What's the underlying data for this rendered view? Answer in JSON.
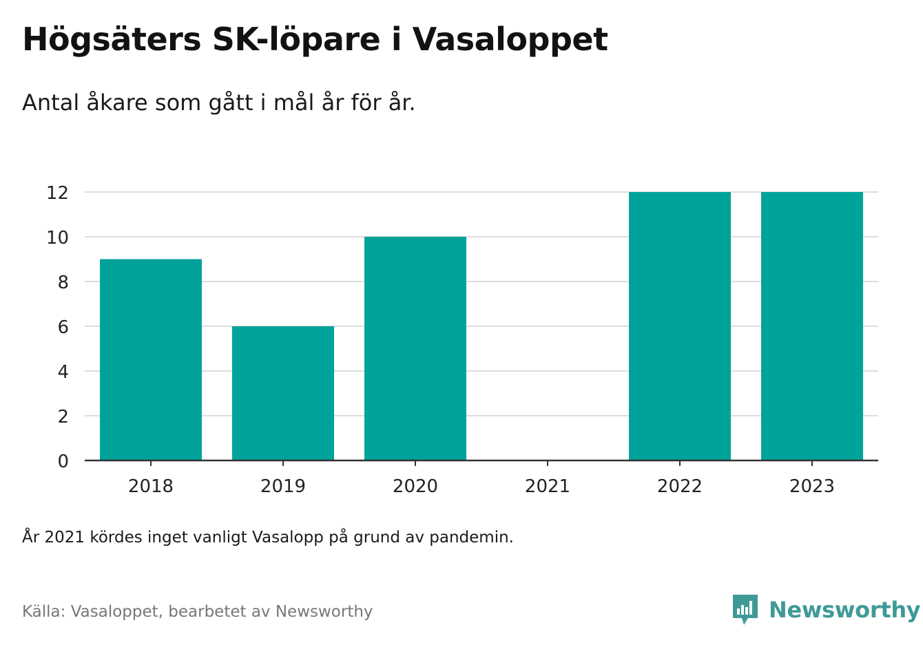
{
  "header": {
    "title": "Högsäters SK-löpare i Vasaloppet",
    "subtitle": "Antal åkare som gått i mål år för år."
  },
  "footer": {
    "note": "År 2021 kördes inget vanligt Vasalopp på grund av pandemin.",
    "source": "Källa: Vasaloppet, bearbetet av Newsworthy",
    "brand": "Newsworthy",
    "brand_icon": "newsworthy-logo-icon"
  },
  "colors": {
    "bar": "#00a39a",
    "grid": "#dddddd",
    "axis": "#333333",
    "brand": "#3f9a97"
  },
  "chart_data": {
    "type": "bar",
    "categories": [
      "2018",
      "2019",
      "2020",
      "2021",
      "2022",
      "2023"
    ],
    "values": [
      9,
      6,
      10,
      0,
      12,
      12
    ],
    "yticks": [
      0,
      2,
      4,
      6,
      8,
      10,
      12
    ],
    "ylim": [
      0,
      12
    ],
    "xlabel": "",
    "ylabel": "",
    "grid": true
  }
}
